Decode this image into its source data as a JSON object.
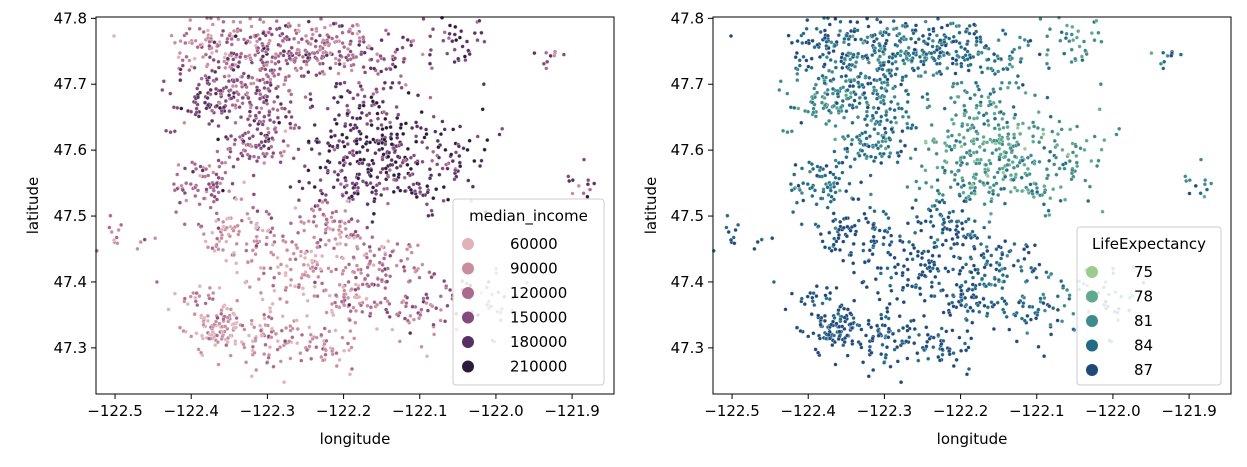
{
  "chart_data": [
    {
      "type": "scatter",
      "xlabel": "longitude",
      "ylabel": "latitude",
      "xlim": [
        -122.525,
        -121.845
      ],
      "ylim": [
        47.23,
        47.802
      ],
      "xticks": [
        -122.5,
        -122.4,
        -122.3,
        -122.2,
        -122.1,
        -122.0,
        -121.9
      ],
      "xtick_labels": [
        "−122.5",
        "−122.4",
        "−122.3",
        "−122.2",
        "−122.1",
        "−122.0",
        "−121.9"
      ],
      "yticks": [
        47.3,
        47.4,
        47.5,
        47.6,
        47.7,
        47.8
      ],
      "ytick_labels": [
        "47.3",
        "47.4",
        "47.5",
        "47.6",
        "47.7",
        "47.8"
      ],
      "hue": "median_income",
      "legend": {
        "title": "median_income",
        "placement": "lower-right",
        "entries": [
          {
            "label": "60000",
            "color": "#e0b3bb"
          },
          {
            "label": "90000",
            "color": "#c98da0"
          },
          {
            "label": "120000",
            "color": "#aa6a8e"
          },
          {
            "label": "150000",
            "color": "#844a7c"
          },
          {
            "label": "180000",
            "color": "#572f63"
          },
          {
            "label": "210000",
            "color": "#2d1b3e"
          }
        ]
      }
    },
    {
      "type": "scatter",
      "xlabel": "longitude",
      "ylabel": "latitude",
      "xlim": [
        -122.525,
        -121.845
      ],
      "ylim": [
        47.23,
        47.802
      ],
      "xticks": [
        -122.5,
        -122.4,
        -122.3,
        -122.2,
        -122.1,
        -122.0,
        -121.9
      ],
      "xtick_labels": [
        "−122.5",
        "−122.4",
        "−122.3",
        "−122.2",
        "−122.1",
        "−122.0",
        "−121.9"
      ],
      "yticks": [
        47.3,
        47.4,
        47.5,
        47.6,
        47.7,
        47.8
      ],
      "ytick_labels": [
        "47.3",
        "47.4",
        "47.5",
        "47.6",
        "47.7",
        "47.8"
      ],
      "hue": "LifeExpectancy",
      "legend": {
        "title": "LifeExpectancy",
        "placement": "lower-right",
        "entries": [
          {
            "label": "75",
            "color": "#9ccb91"
          },
          {
            "label": "78",
            "color": "#5fa98e"
          },
          {
            "label": "81",
            "color": "#3f8a8c"
          },
          {
            "label": "84",
            "color": "#226b86"
          },
          {
            "label": "87",
            "color": "#1e4a7a"
          }
        ]
      }
    }
  ]
}
